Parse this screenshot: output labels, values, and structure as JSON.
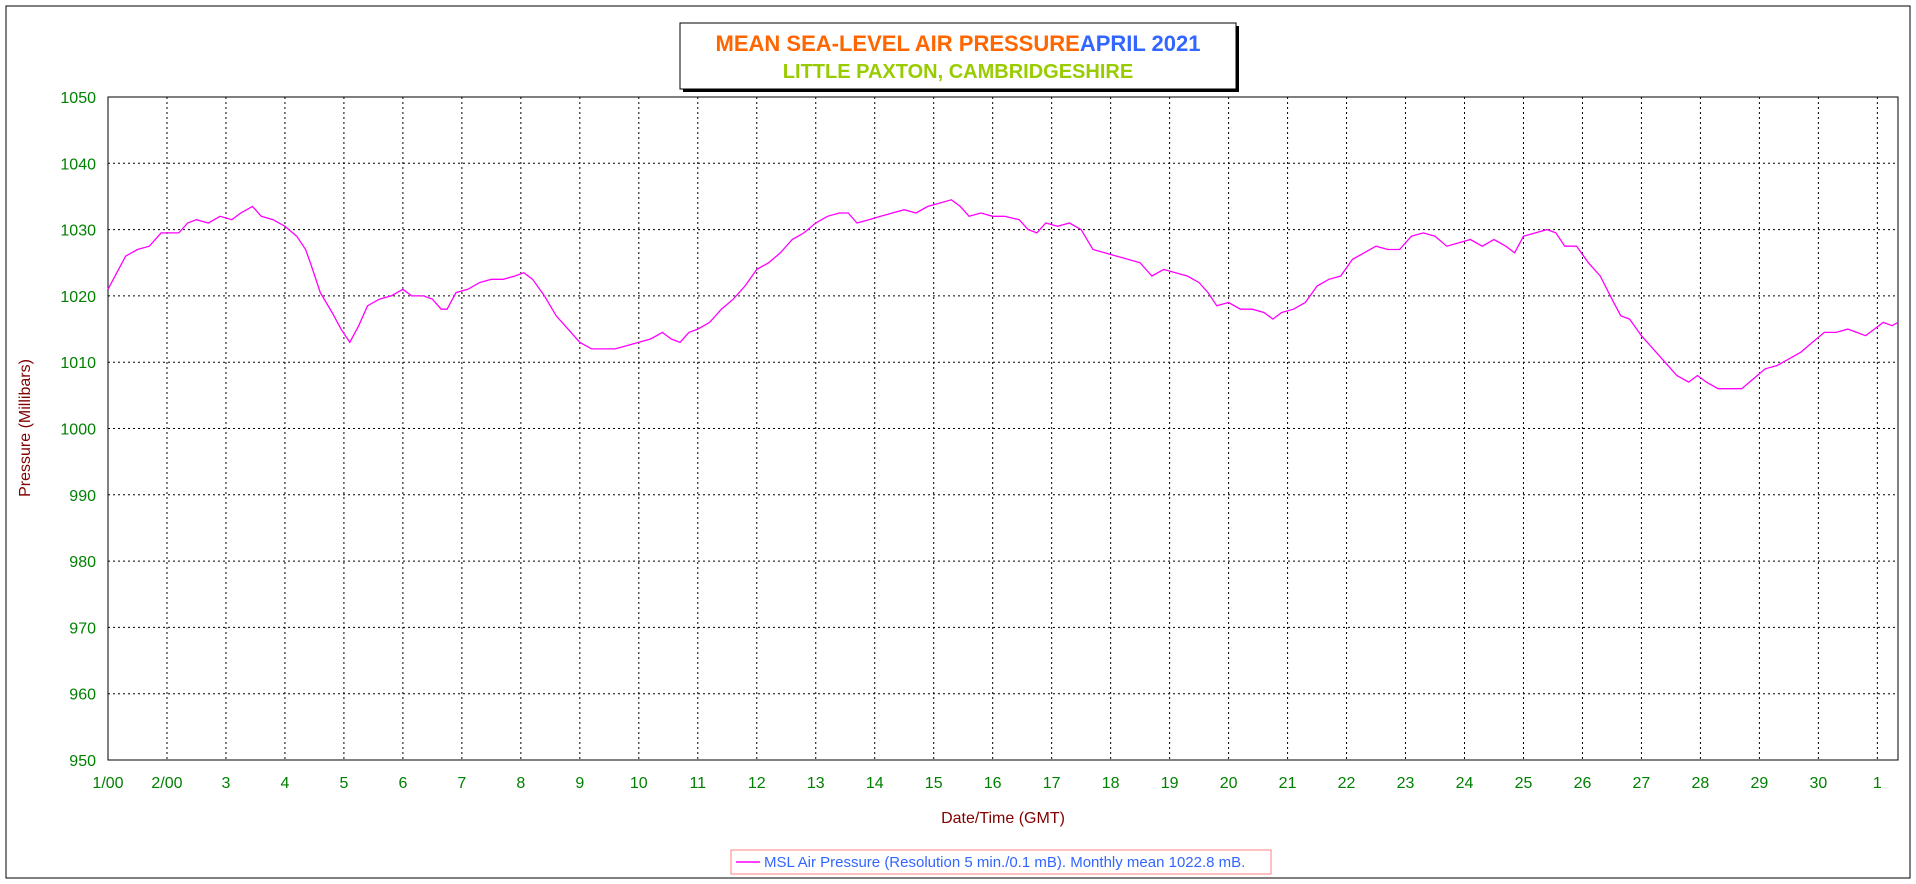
{
  "title": {
    "main": "MEAN SEA-LEVEL AIR PRESSURE",
    "month": "APRIL 2021",
    "location": "LITTLE PAXTON, CAMBRIDGESHIRE"
  },
  "colors": {
    "title_main": "#FF6600",
    "title_month": "#3366FF",
    "title_location": "#99CC00",
    "tick_labels": "#008000",
    "axis_titles": "#800000",
    "series": "#FF00FF",
    "legend_text": "#3366FF",
    "legend_border": "#FF8080",
    "grid": "#000000"
  },
  "legend": {
    "text": "MSL Air Pressure (Resolution 5 min./0.1 mB). Monthly mean 1022.8 mB."
  },
  "chart_data": {
    "type": "line",
    "title": "MEAN SEA-LEVEL AIR PRESSURE   APRIL 2021",
    "subtitle": "LITTLE PAXTON, CAMBRIDGESHIRE",
    "xlabel": "Date/Time (GMT)",
    "ylabel": "Pressure (Millibars)",
    "ylim": [
      950,
      1050
    ],
    "yticks": [
      950,
      960,
      970,
      980,
      990,
      1000,
      1010,
      1020,
      1030,
      1040,
      1050
    ],
    "xlim": [
      1,
      31.35
    ],
    "xticks": [
      {
        "x": 1,
        "label": "1/00"
      },
      {
        "x": 2,
        "label": "2/00"
      },
      {
        "x": 3,
        "label": "3"
      },
      {
        "x": 4,
        "label": "4"
      },
      {
        "x": 5,
        "label": "5"
      },
      {
        "x": 6,
        "label": "6"
      },
      {
        "x": 7,
        "label": "7"
      },
      {
        "x": 8,
        "label": "8"
      },
      {
        "x": 9,
        "label": "9"
      },
      {
        "x": 10,
        "label": "10"
      },
      {
        "x": 11,
        "label": "11"
      },
      {
        "x": 12,
        "label": "12"
      },
      {
        "x": 13,
        "label": "13"
      },
      {
        "x": 14,
        "label": "14"
      },
      {
        "x": 15,
        "label": "15"
      },
      {
        "x": 16,
        "label": "16"
      },
      {
        "x": 17,
        "label": "17"
      },
      {
        "x": 18,
        "label": "18"
      },
      {
        "x": 19,
        "label": "19"
      },
      {
        "x": 20,
        "label": "20"
      },
      {
        "x": 21,
        "label": "21"
      },
      {
        "x": 22,
        "label": "22"
      },
      {
        "x": 23,
        "label": "23"
      },
      {
        "x": 24,
        "label": "24"
      },
      {
        "x": 25,
        "label": "25"
      },
      {
        "x": 26,
        "label": "26"
      },
      {
        "x": 27,
        "label": "27"
      },
      {
        "x": 28,
        "label": "28"
      },
      {
        "x": 29,
        "label": "29"
      },
      {
        "x": 30,
        "label": "30"
      },
      {
        "x": 31,
        "label": "1"
      }
    ],
    "grid": true,
    "legend_position": "bottom-center",
    "series": [
      {
        "name": "MSL Air Pressure (Resolution 5 min./0.1 mB). Monthly mean 1022.8 mB.",
        "points": [
          [
            1.0,
            1021.0
          ],
          [
            1.15,
            1023.5
          ],
          [
            1.3,
            1026.0
          ],
          [
            1.5,
            1027.0
          ],
          [
            1.7,
            1027.5
          ],
          [
            1.9,
            1029.5
          ],
          [
            2.0,
            1029.5
          ],
          [
            2.2,
            1029.5
          ],
          [
            2.35,
            1031.0
          ],
          [
            2.5,
            1031.5
          ],
          [
            2.7,
            1031.0
          ],
          [
            2.9,
            1032.0
          ],
          [
            3.1,
            1031.5
          ],
          [
            3.25,
            1032.5
          ],
          [
            3.45,
            1033.5
          ],
          [
            3.6,
            1032.0
          ],
          [
            3.8,
            1031.5
          ],
          [
            4.0,
            1030.5
          ],
          [
            4.2,
            1029.0
          ],
          [
            4.35,
            1027.0
          ],
          [
            4.45,
            1024.5
          ],
          [
            4.6,
            1020.5
          ],
          [
            4.8,
            1017.5
          ],
          [
            4.95,
            1015.0
          ],
          [
            5.1,
            1013.0
          ],
          [
            5.25,
            1015.5
          ],
          [
            5.4,
            1018.5
          ],
          [
            5.6,
            1019.5
          ],
          [
            5.8,
            1020.0
          ],
          [
            6.0,
            1021.0
          ],
          [
            6.15,
            1020.0
          ],
          [
            6.35,
            1020.0
          ],
          [
            6.5,
            1019.5
          ],
          [
            6.65,
            1018.0
          ],
          [
            6.75,
            1018.0
          ],
          [
            6.9,
            1020.5
          ],
          [
            7.1,
            1021.0
          ],
          [
            7.3,
            1022.0
          ],
          [
            7.5,
            1022.5
          ],
          [
            7.7,
            1022.5
          ],
          [
            7.9,
            1023.0
          ],
          [
            8.05,
            1023.5
          ],
          [
            8.2,
            1022.5
          ],
          [
            8.4,
            1020.0
          ],
          [
            8.6,
            1017.0
          ],
          [
            8.8,
            1015.0
          ],
          [
            9.0,
            1013.0
          ],
          [
            9.2,
            1012.0
          ],
          [
            9.4,
            1012.0
          ],
          [
            9.6,
            1012.0
          ],
          [
            9.8,
            1012.5
          ],
          [
            10.0,
            1013.0
          ],
          [
            10.2,
            1013.5
          ],
          [
            10.4,
            1014.5
          ],
          [
            10.55,
            1013.5
          ],
          [
            10.7,
            1013.0
          ],
          [
            10.85,
            1014.5
          ],
          [
            11.0,
            1015.0
          ],
          [
            11.2,
            1016.0
          ],
          [
            11.4,
            1018.0
          ],
          [
            11.6,
            1019.5
          ],
          [
            11.8,
            1021.5
          ],
          [
            12.0,
            1024.0
          ],
          [
            12.2,
            1025.0
          ],
          [
            12.4,
            1026.5
          ],
          [
            12.6,
            1028.5
          ],
          [
            12.8,
            1029.5
          ],
          [
            13.0,
            1031.0
          ],
          [
            13.2,
            1032.0
          ],
          [
            13.4,
            1032.5
          ],
          [
            13.55,
            1032.5
          ],
          [
            13.7,
            1031.0
          ],
          [
            13.9,
            1031.5
          ],
          [
            14.1,
            1032.0
          ],
          [
            14.3,
            1032.5
          ],
          [
            14.5,
            1033.0
          ],
          [
            14.7,
            1032.5
          ],
          [
            14.9,
            1033.5
          ],
          [
            15.1,
            1034.0
          ],
          [
            15.3,
            1034.5
          ],
          [
            15.45,
            1033.5
          ],
          [
            15.6,
            1032.0
          ],
          [
            15.8,
            1032.5
          ],
          [
            16.0,
            1032.0
          ],
          [
            16.2,
            1032.0
          ],
          [
            16.45,
            1031.5
          ],
          [
            16.6,
            1030.0
          ],
          [
            16.75,
            1029.5
          ],
          [
            16.9,
            1031.0
          ],
          [
            17.1,
            1030.5
          ],
          [
            17.3,
            1031.0
          ],
          [
            17.5,
            1030.0
          ],
          [
            17.7,
            1027.0
          ],
          [
            17.9,
            1026.5
          ],
          [
            18.1,
            1026.0
          ],
          [
            18.3,
            1025.5
          ],
          [
            18.5,
            1025.0
          ],
          [
            18.7,
            1023.0
          ],
          [
            18.9,
            1024.0
          ],
          [
            19.1,
            1023.5
          ],
          [
            19.3,
            1023.0
          ],
          [
            19.5,
            1022.0
          ],
          [
            19.65,
            1020.5
          ],
          [
            19.8,
            1018.5
          ],
          [
            20.0,
            1019.0
          ],
          [
            20.2,
            1018.0
          ],
          [
            20.4,
            1018.0
          ],
          [
            20.6,
            1017.5
          ],
          [
            20.75,
            1016.5
          ],
          [
            20.9,
            1017.5
          ],
          [
            21.1,
            1018.0
          ],
          [
            21.3,
            1019.0
          ],
          [
            21.5,
            1021.5
          ],
          [
            21.7,
            1022.5
          ],
          [
            21.9,
            1023.0
          ],
          [
            22.1,
            1025.5
          ],
          [
            22.3,
            1026.5
          ],
          [
            22.5,
            1027.5
          ],
          [
            22.7,
            1027.0
          ],
          [
            22.9,
            1027.0
          ],
          [
            23.1,
            1029.0
          ],
          [
            23.3,
            1029.5
          ],
          [
            23.5,
            1029.0
          ],
          [
            23.7,
            1027.5
          ],
          [
            23.9,
            1028.0
          ],
          [
            24.1,
            1028.5
          ],
          [
            24.3,
            1027.5
          ],
          [
            24.5,
            1028.5
          ],
          [
            24.7,
            1027.5
          ],
          [
            24.85,
            1026.5
          ],
          [
            25.0,
            1029.0
          ],
          [
            25.2,
            1029.5
          ],
          [
            25.4,
            1030.0
          ],
          [
            25.55,
            1029.5
          ],
          [
            25.7,
            1027.5
          ],
          [
            25.9,
            1027.5
          ],
          [
            26.1,
            1025.0
          ],
          [
            26.3,
            1023.0
          ],
          [
            26.5,
            1019.5
          ],
          [
            26.65,
            1017.0
          ],
          [
            26.8,
            1016.5
          ],
          [
            27.0,
            1014.0
          ],
          [
            27.2,
            1012.0
          ],
          [
            27.4,
            1010.0
          ],
          [
            27.6,
            1008.0
          ],
          [
            27.8,
            1007.0
          ],
          [
            27.95,
            1008.0
          ],
          [
            28.1,
            1007.0
          ],
          [
            28.3,
            1006.0
          ],
          [
            28.5,
            1006.0
          ],
          [
            28.7,
            1006.0
          ],
          [
            28.9,
            1007.5
          ],
          [
            29.1,
            1009.0
          ],
          [
            29.3,
            1009.5
          ],
          [
            29.5,
            1010.5
          ],
          [
            29.7,
            1011.5
          ],
          [
            29.9,
            1013.0
          ],
          [
            30.1,
            1014.5
          ],
          [
            30.3,
            1014.5
          ],
          [
            30.5,
            1015.0
          ],
          [
            30.65,
            1014.5
          ],
          [
            30.8,
            1014.0
          ],
          [
            30.95,
            1015.0
          ],
          [
            31.1,
            1016.0
          ],
          [
            31.25,
            1015.5
          ],
          [
            31.35,
            1016.0
          ]
        ]
      }
    ]
  }
}
